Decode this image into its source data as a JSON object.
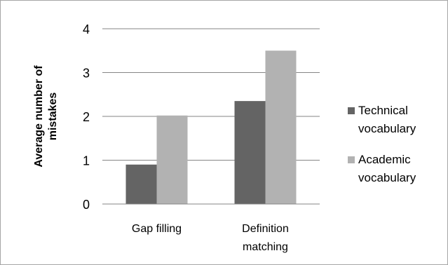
{
  "chart_data": {
    "type": "bar",
    "categories": [
      [
        "Gap filling"
      ],
      [
        "Definition",
        "matching"
      ]
    ],
    "series": [
      {
        "name": [
          "Technical",
          "vocabulary"
        ],
        "color": "#646464",
        "values": [
          0.9,
          2.35
        ]
      },
      {
        "name": [
          "Academic",
          "vocabulary"
        ],
        "color": "#b2b2b2",
        "values": [
          2.02,
          3.5
        ]
      }
    ],
    "ylabel": [
      "Average number of",
      "mistakes"
    ],
    "ylim": [
      0,
      4
    ],
    "yticks": [
      "0",
      "1",
      "2",
      "3",
      "4"
    ],
    "grid": true,
    "legend": "right"
  }
}
